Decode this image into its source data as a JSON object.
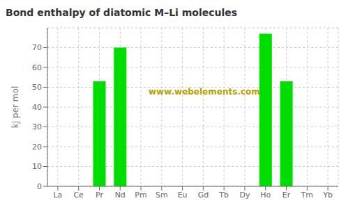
{
  "chart_data": {
    "type": "bar",
    "title": "Bond enthalpy of diatomic M–Li molecules",
    "ylabel": "kJ per mol",
    "annotation": "www.webelements.com",
    "categories": [
      "La",
      "Ce",
      "Pr",
      "Nd",
      "Pm",
      "Sm",
      "Eu",
      "Gd",
      "Tb",
      "Dy",
      "Ho",
      "Er",
      "Tm",
      "Yb"
    ],
    "values": [
      0,
      0,
      53,
      70,
      0,
      0,
      0,
      0,
      0,
      0,
      77,
      53,
      0,
      0
    ],
    "color": "#00dd00",
    "ylim": [
      0,
      80
    ],
    "yticks": [
      0,
      10,
      20,
      30,
      40,
      50,
      60,
      70
    ],
    "grid": true
  }
}
